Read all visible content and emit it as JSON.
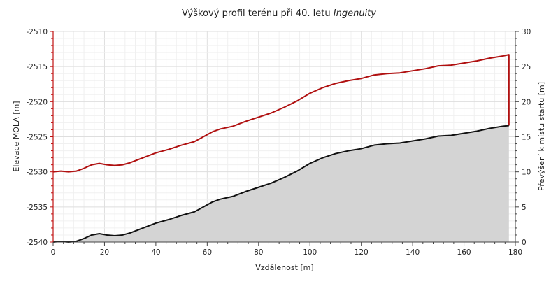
{
  "chart_data": {
    "type": "line",
    "title_text": "Výškový profil terénu při 40. letu ",
    "title_italic": "Ingenuity",
    "xlabel": "Vzdálenost [m]",
    "ylabel_left": "Elevace MOLA [m]",
    "ylabel_right": "Převýšení k místu startu [m]",
    "xlim": [
      0,
      180
    ],
    "ylim_left": [
      -2540,
      -2510
    ],
    "ylim_right": [
      0,
      30
    ],
    "x_ticks": [
      0,
      20,
      40,
      60,
      80,
      100,
      120,
      140,
      160,
      180
    ],
    "y_ticks_left": [
      -2540,
      -2535,
      -2530,
      -2525,
      -2520,
      -2515,
      -2510
    ],
    "y_ticks_right": [
      0,
      5,
      10,
      15,
      20,
      25,
      30
    ],
    "grid": true,
    "series": [
      {
        "role": "flight-path",
        "color": "#b01010",
        "axis": "left",
        "x": [
          0,
          3,
          6,
          9,
          12,
          15,
          18,
          21,
          24,
          27,
          30,
          35,
          40,
          45,
          50,
          55,
          58,
          62,
          65,
          70,
          75,
          80,
          85,
          90,
          95,
          100,
          105,
          110,
          115,
          120,
          125,
          130,
          135,
          140,
          145,
          150,
          155,
          160,
          165,
          170,
          175,
          177.5,
          177.5
        ],
        "y": [
          -2530.0,
          -2529.9,
          -2530.0,
          -2529.9,
          -2529.5,
          -2529.0,
          -2528.8,
          -2529.0,
          -2529.1,
          -2529.0,
          -2528.7,
          -2528.0,
          -2527.3,
          -2526.8,
          -2526.2,
          -2525.7,
          -2525.1,
          -2524.3,
          -2523.9,
          -2523.5,
          -2522.8,
          -2522.2,
          -2521.6,
          -2520.8,
          -2519.9,
          -2518.8,
          -2518.0,
          -2517.4,
          -2517.0,
          -2516.7,
          -2516.2,
          -2516.0,
          -2515.9,
          -2515.6,
          -2515.3,
          -2514.9,
          -2514.8,
          -2514.5,
          -2514.2,
          -2513.8,
          -2513.5,
          -2513.3,
          -2523.4
        ]
      },
      {
        "role": "terrain",
        "color": "#111111",
        "fill": "#d4d4d4",
        "axis": "right",
        "x": [
          0,
          3,
          6,
          9,
          12,
          15,
          18,
          21,
          24,
          27,
          30,
          35,
          40,
          45,
          50,
          55,
          58,
          62,
          65,
          70,
          75,
          80,
          85,
          90,
          95,
          100,
          105,
          110,
          115,
          120,
          125,
          130,
          135,
          140,
          145,
          150,
          155,
          160,
          165,
          170,
          175,
          177.5
        ],
        "y": [
          0.0,
          0.1,
          0.0,
          0.1,
          0.5,
          1.0,
          1.2,
          1.0,
          0.9,
          1.0,
          1.3,
          2.0,
          2.7,
          3.2,
          3.8,
          4.3,
          4.9,
          5.7,
          6.1,
          6.5,
          7.2,
          7.8,
          8.4,
          9.2,
          10.1,
          11.2,
          12.0,
          12.6,
          13.0,
          13.3,
          13.8,
          14.0,
          14.1,
          14.4,
          14.7,
          15.1,
          15.2,
          15.5,
          15.8,
          16.2,
          16.5,
          16.6
        ]
      }
    ]
  }
}
